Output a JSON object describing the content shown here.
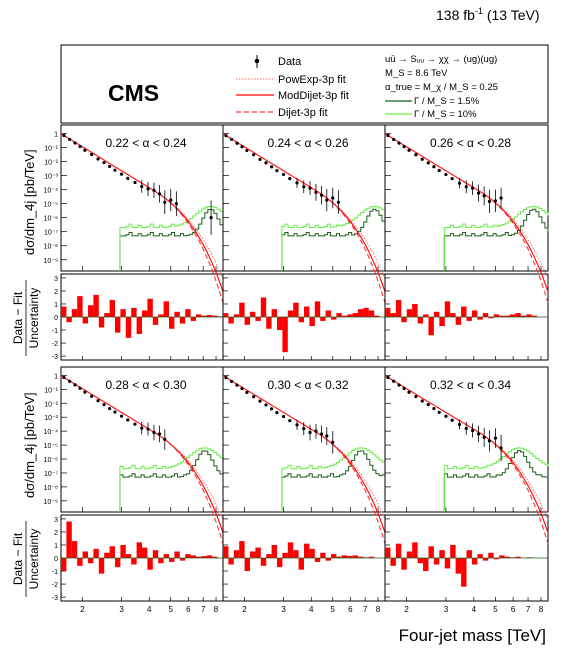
{
  "header": {
    "lumi": "138 fb",
    "lumi_sup": "-1",
    "energy": "(13 TeV)"
  },
  "cms_label": "CMS",
  "legend": {
    "data": "Data",
    "powexp": "PowExp-3p fit",
    "moddijet": "ModDijet-3p fit",
    "dijet": "Dijet-3p fit",
    "process": "uū → Sᵤᵤ → χχ → (ug)(ug)",
    "ms": "M_S = 8.6 TeV",
    "alpha": "α_true = M_χ / M_S = 0.25",
    "gamma_narrow": "Γ / M_S = 1.5%",
    "gamma_wide": "Γ / M_S = 10%"
  },
  "labels": {
    "ylabel_spectrum": "dσ/dm_4j [pb/TeV]",
    "ylabel_pull_top": "Data − Fit",
    "ylabel_pull_bottom": "Uncertainty",
    "xlabel": "Four-jet mass [TeV]"
  },
  "colors": {
    "powexp": "#ff6666",
    "moddijet": "#ff0000",
    "dijet": "#ff3333",
    "gamma_narrow": "#1a5e1a",
    "gamma_wide": "#66ee44",
    "pull_bar": "#ff0000"
  },
  "chart_data": {
    "type": "line",
    "x_unit": "TeV",
    "x_scale": "log",
    "xlim": [
      1.6,
      8.6
    ],
    "x_ticks": [
      "2",
      "3",
      "4",
      "5",
      "6",
      "7",
      "8"
    ],
    "y_scale": "log",
    "ylim_exponent": [
      -9.8,
      0.6
    ],
    "y_ticks": [
      "1",
      "10⁻¹",
      "10⁻²",
      "10⁻³",
      "10⁻⁴",
      "10⁻⁵",
      "10⁻⁶",
      "10⁻⁷",
      "10⁻⁸",
      "10⁻⁹"
    ],
    "pull_ylim": [
      -3.3,
      3.3
    ],
    "pull_ticks": [
      "-3",
      "-2",
      "-1",
      "0",
      "1",
      "2",
      "3"
    ],
    "panels": [
      {
        "label": "0.22 < α < 0.24",
        "data_x": [
          1.65,
          1.75,
          1.85,
          1.95,
          2.05,
          2.2,
          2.35,
          2.5,
          2.65,
          2.8,
          3.0,
          3.2,
          3.45,
          3.7,
          3.95,
          4.2,
          4.45,
          4.7,
          5.0,
          5.3,
          7.6
        ],
        "data_logy": [
          -0.15,
          -0.42,
          -0.68,
          -0.93,
          -1.2,
          -1.5,
          -1.82,
          -2.08,
          -2.35,
          -2.62,
          -2.9,
          -3.2,
          -3.5,
          -3.78,
          -3.95,
          -4.05,
          -4.3,
          -4.9,
          -4.75,
          -5.0,
          -6.0
        ],
        "signal_start": 2.95,
        "signal_peak": 7.45,
        "pulls": [
          0.8,
          -0.4,
          0.6,
          1.6,
          -0.5,
          0.9,
          1.7,
          -0.8,
          0.3,
          1.3,
          -1.2,
          0.6,
          -1.6,
          0.7,
          -1.3,
          0.5,
          1.4,
          -0.6,
          0.2,
          1.2,
          -0.9,
          0.4,
          -0.5,
          0.6,
          -0.3,
          0.2,
          0.1,
          0.15,
          0.1,
          0.05
        ]
      },
      {
        "label": "0.24 < α < 0.26",
        "data_x": [
          1.65,
          1.75,
          1.85,
          1.95,
          2.05,
          2.2,
          2.35,
          2.5,
          2.65,
          2.8,
          3.0,
          3.2,
          3.45,
          3.7,
          3.95,
          4.2,
          4.45,
          4.7,
          5.0,
          5.3
        ],
        "data_logy": [
          -0.16,
          -0.42,
          -0.7,
          -0.95,
          -1.22,
          -1.52,
          -1.85,
          -2.1,
          -2.38,
          -2.65,
          -2.92,
          -3.22,
          -3.52,
          -3.8,
          -3.9,
          -4.2,
          -4.4,
          -4.75,
          -4.6,
          -4.9
        ],
        "signal_start": 2.95,
        "signal_peak": 7.6,
        "pulls": [
          0.3,
          -0.5,
          0.2,
          1.1,
          -0.6,
          0.4,
          -0.3,
          1.5,
          -0.9,
          0.6,
          -1.0,
          -2.7,
          0.5,
          1.1,
          -0.4,
          0.8,
          -0.7,
          1.2,
          -0.3,
          0.5,
          -0.2,
          0.3,
          0.1,
          0.2,
          0.3,
          0.6,
          0.7,
          0.5,
          0.1,
          0.0
        ]
      },
      {
        "label": "0.26 < α < 0.28",
        "data_x": [
          1.65,
          1.75,
          1.85,
          1.95,
          2.05,
          2.2,
          2.35,
          2.5,
          2.65,
          2.8,
          3.0,
          3.2,
          3.45,
          3.7,
          3.95,
          4.2,
          4.45,
          4.7,
          5.0,
          5.3
        ],
        "data_logy": [
          -0.15,
          -0.43,
          -0.69,
          -0.94,
          -1.2,
          -1.52,
          -1.84,
          -2.1,
          -2.37,
          -2.64,
          -2.93,
          -3.22,
          -3.55,
          -3.8,
          -3.9,
          -4.25,
          -4.45,
          -4.85,
          -4.8,
          -4.6
        ],
        "signal_start": 2.95,
        "signal_peak": 7.3,
        "pulls": [
          0.7,
          0.3,
          1.3,
          -0.4,
          0.6,
          1.0,
          -0.5,
          0.2,
          -1.4,
          0.4,
          -0.7,
          1.2,
          0.3,
          -0.6,
          0.8,
          -0.3,
          0.5,
          -0.2,
          0.3,
          -0.1,
          0.2,
          0.1,
          0.1,
          0.2,
          0.3,
          0.1,
          0.2,
          0.1,
          0.0,
          0.0
        ]
      },
      {
        "label": "0.28 < α < 0.30",
        "data_x": [
          1.65,
          1.75,
          1.85,
          1.95,
          2.05,
          2.2,
          2.35,
          2.5,
          2.65,
          2.8,
          3.0,
          3.2,
          3.45,
          3.7,
          3.95,
          4.2,
          4.45,
          4.7
        ],
        "data_logy": [
          -0.15,
          -0.42,
          -0.68,
          -0.93,
          -1.2,
          -1.5,
          -1.82,
          -2.1,
          -2.38,
          -2.63,
          -2.92,
          -3.2,
          -3.5,
          -3.78,
          -3.85,
          -4.1,
          -4.2,
          -4.6
        ],
        "signal_start": 2.95,
        "signal_peak": 7.0,
        "pulls": [
          -1.0,
          2.8,
          1.3,
          -0.6,
          0.5,
          -0.4,
          0.7,
          -1.2,
          0.4,
          0.9,
          -0.7,
          1.0,
          0.3,
          -0.5,
          1.2,
          0.8,
          -0.9,
          0.6,
          -0.4,
          0.3,
          -0.3,
          0.5,
          -0.2,
          0.3,
          0.2,
          0.1,
          0.15,
          0.2,
          0.1,
          0.0
        ]
      },
      {
        "label": "0.30 < α < 0.32",
        "data_x": [
          1.65,
          1.75,
          1.85,
          1.95,
          2.05,
          2.2,
          2.35,
          2.5,
          2.65,
          2.8,
          3.0,
          3.2,
          3.45,
          3.7,
          3.95,
          4.2,
          4.45,
          4.7,
          5.0
        ],
        "data_logy": [
          -0.16,
          -0.43,
          -0.7,
          -0.95,
          -1.22,
          -1.53,
          -1.85,
          -2.12,
          -2.4,
          -2.67,
          -2.95,
          -3.25,
          -3.55,
          -3.82,
          -4.1,
          -4.0,
          -4.2,
          -4.35,
          -4.8
        ],
        "signal_start": 2.95,
        "signal_peak": 6.6,
        "pulls": [
          0.9,
          -0.5,
          0.6,
          1.3,
          -1.0,
          0.5,
          0.8,
          -0.6,
          0.3,
          1.0,
          -0.7,
          0.4,
          1.2,
          0.6,
          -0.9,
          1.1,
          0.7,
          -0.3,
          0.4,
          -0.2,
          0.3,
          0.1,
          0.2,
          0.15,
          0.2,
          0.1,
          0.05,
          0.1,
          0.0,
          0.0
        ]
      },
      {
        "label": "0.32 < α < 0.34",
        "data_x": [
          1.65,
          1.75,
          1.85,
          1.95,
          2.05,
          2.2,
          2.35,
          2.5,
          2.65,
          2.8,
          3.0,
          3.2,
          3.45,
          3.7,
          3.95,
          4.2,
          4.45,
          4.7,
          5.0,
          5.3
        ],
        "data_logy": [
          -0.15,
          -0.42,
          -0.69,
          -0.94,
          -1.21,
          -1.52,
          -1.84,
          -2.1,
          -2.38,
          -2.65,
          -2.93,
          -3.22,
          -3.52,
          -3.8,
          -3.95,
          -4.2,
          -4.45,
          -4.7,
          -4.5,
          -5.2
        ],
        "signal_start": 2.95,
        "signal_peak": 6.3,
        "pulls": [
          0.8,
          -0.6,
          1.1,
          -0.9,
          0.5,
          1.2,
          -0.4,
          -1.0,
          0.9,
          -0.5,
          0.6,
          -0.8,
          1.0,
          -1.2,
          -2.2,
          0.6,
          -0.5,
          0.3,
          -0.2,
          0.4,
          -0.1,
          0.2,
          0.1,
          0.05,
          0.1,
          0.0,
          0.05,
          0.0,
          0.0,
          0.0
        ]
      }
    ]
  }
}
